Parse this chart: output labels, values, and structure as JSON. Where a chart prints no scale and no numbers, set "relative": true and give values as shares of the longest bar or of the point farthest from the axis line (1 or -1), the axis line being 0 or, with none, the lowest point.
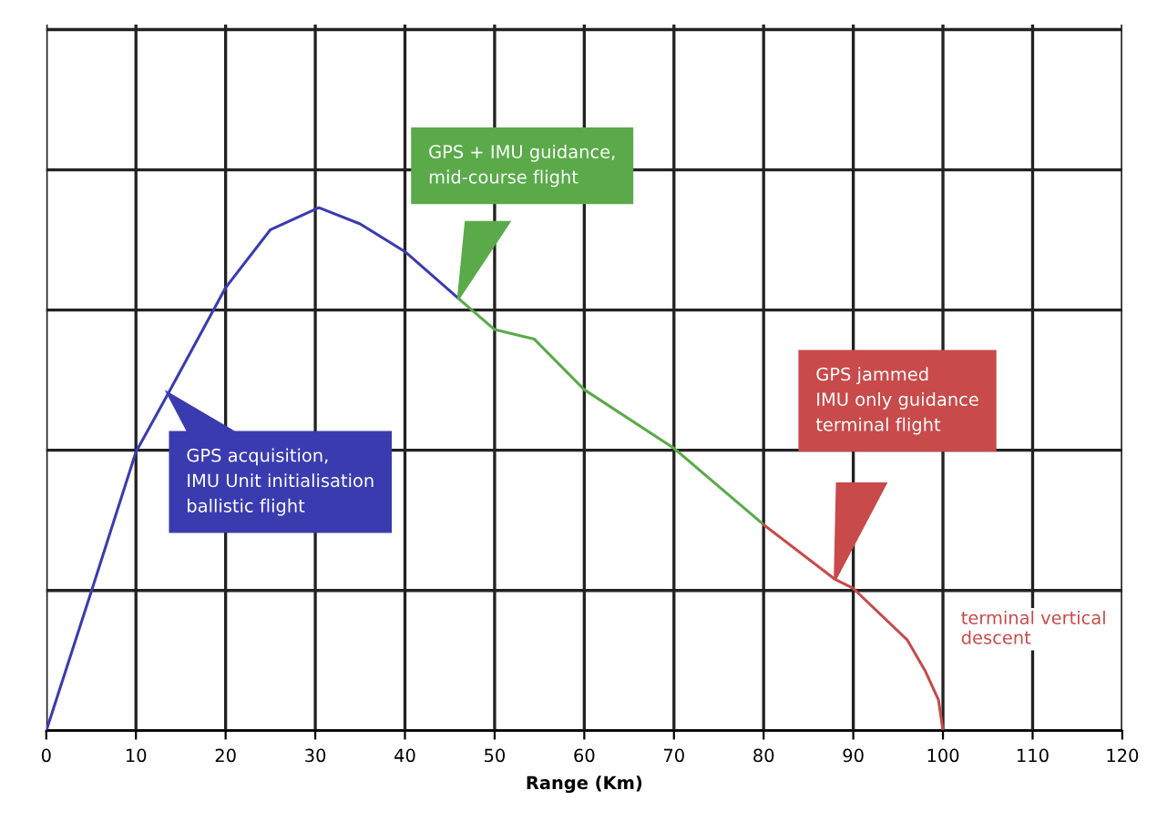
{
  "chart_data": {
    "type": "line",
    "relative": true,
    "xlabel": "Range (Km)",
    "xlim": [
      0,
      120
    ],
    "xticks": [
      0,
      10,
      20,
      30,
      40,
      50,
      60,
      70,
      80,
      90,
      100,
      110,
      120
    ],
    "grid": true,
    "tick_labels": "x",
    "line_style": "solid",
    "marker": "none",
    "series": [
      {
        "color": "#3b3bb0",
        "x": [
          0,
          5,
          10,
          13.6,
          20,
          25,
          30.4,
          35,
          40,
          46
        ],
        "values": [
          0,
          0.265,
          0.533,
          0.645,
          0.847,
          0.958,
          1,
          0.969,
          0.916,
          0.826
        ]
      },
      {
        "color": "#5aaa4a",
        "x": [
          46,
          50,
          54.4,
          60,
          70,
          80
        ],
        "values": [
          0.826,
          0.767,
          0.749,
          0.652,
          0.54,
          0.394
        ]
      },
      {
        "color": "#c84a4a",
        "x": [
          80,
          88,
          90,
          96,
          98,
          99.5,
          100
        ],
        "values": [
          0.394,
          0.289,
          0.272,
          0.174,
          0.115,
          0.059,
          0
        ]
      }
    ],
    "annotations": [
      "GPS acquisition,\nIMU Unit initialisation\nballistic flight",
      "GPS + IMU guidance,\nmid-course flight",
      "GPS jammed\nIMU only guidance\nterminal flight",
      "terminal vertical\ndescent"
    ]
  }
}
